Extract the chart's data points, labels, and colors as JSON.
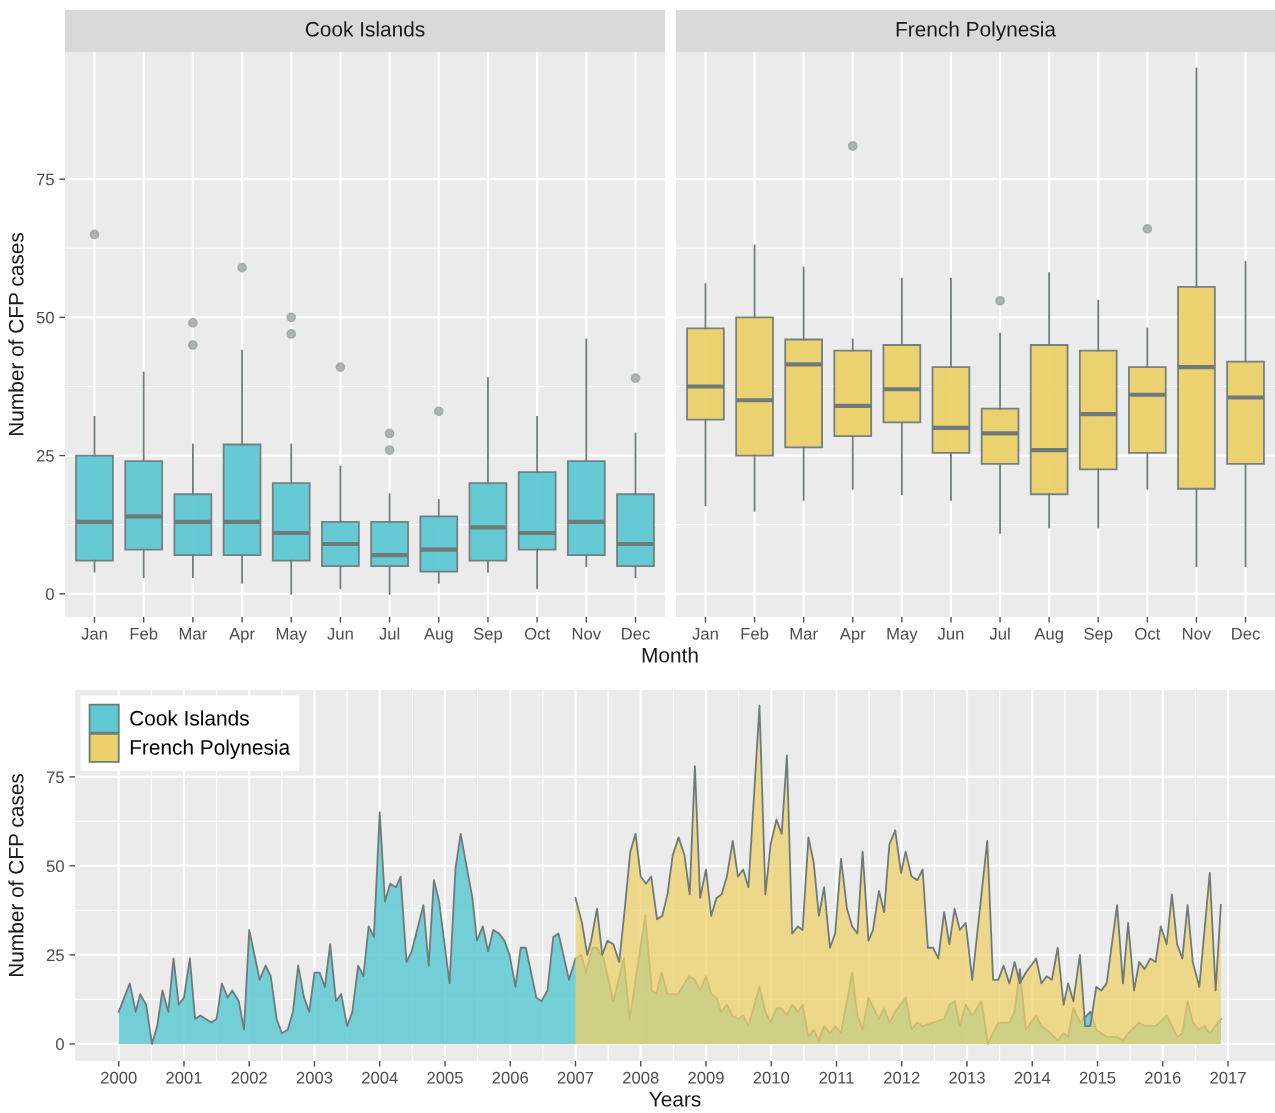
{
  "chart_data": [
    {
      "type": "box",
      "title": "Cook Islands",
      "xlabel": "Month",
      "ylabel": "Number of CFP cases",
      "categories": [
        "Jan",
        "Feb",
        "Mar",
        "Apr",
        "May",
        "Jun",
        "Jul",
        "Aug",
        "Sep",
        "Oct",
        "Nov",
        "Dec"
      ],
      "ylim": [
        -4.2,
        98
      ],
      "yticks": [
        0,
        25,
        50,
        75
      ],
      "grid": true,
      "series": [
        {
          "color": "#5ec9d2",
          "boxes": [
            {
              "low": 4,
              "q1": 6,
              "median": 13,
              "q3": 25,
              "high": 32,
              "outliers": [
                65
              ]
            },
            {
              "low": 3,
              "q1": 8,
              "median": 14,
              "q3": 24,
              "high": 40
            },
            {
              "low": 3,
              "q1": 7,
              "median": 13,
              "q3": 18,
              "high": 27,
              "outliers": [
                45,
                49
              ]
            },
            {
              "low": 2,
              "q1": 7,
              "median": 13,
              "q3": 27,
              "high": 44,
              "outliers": [
                59
              ]
            },
            {
              "low": 0,
              "q1": 6,
              "median": 11,
              "q3": 20,
              "high": 27,
              "outliers": [
                47,
                50
              ]
            },
            {
              "low": 1,
              "q1": 5,
              "median": 9,
              "q3": 13,
              "high": 23,
              "outliers": [
                41
              ]
            },
            {
              "low": 0,
              "q1": 5,
              "median": 7,
              "q3": 13,
              "high": 18,
              "outliers": [
                26,
                29
              ]
            },
            {
              "low": 2,
              "q1": 4,
              "median": 8,
              "q3": 14,
              "high": 17,
              "outliers": [
                33
              ]
            },
            {
              "low": 4,
              "q1": 6,
              "median": 12,
              "q3": 20,
              "high": 39
            },
            {
              "low": 1,
              "q1": 8,
              "median": 11,
              "q3": 22,
              "high": 32
            },
            {
              "low": 5,
              "q1": 7,
              "median": 13,
              "q3": 24,
              "high": 46
            },
            {
              "low": 3,
              "q1": 5,
              "median": 9,
              "q3": 18,
              "high": 29,
              "outliers": [
                39
              ]
            }
          ]
        }
      ]
    },
    {
      "type": "box",
      "title": "French Polynesia",
      "categories": [
        "Jan",
        "Feb",
        "Mar",
        "Apr",
        "May",
        "Jun",
        "Jul",
        "Aug",
        "Sep",
        "Oct",
        "Nov",
        "Dec"
      ],
      "ylim": [
        -4.2,
        98
      ],
      "yticks": [
        0,
        25,
        50,
        75
      ],
      "grid": true,
      "tick_labels": "x",
      "series": [
        {
          "color": "#ecd06a",
          "boxes": [
            {
              "low": 16,
              "q1": 31.5,
              "median": 37.5,
              "q3": 48,
              "high": 56
            },
            {
              "low": 15,
              "q1": 25,
              "median": 35,
              "q3": 50,
              "high": 63
            },
            {
              "low": 17,
              "q1": 26.5,
              "median": 41.5,
              "q3": 46,
              "high": 59
            },
            {
              "low": 19,
              "q1": 28.5,
              "median": 34,
              "q3": 44,
              "high": 46,
              "outliers": [
                81
              ]
            },
            {
              "low": 18,
              "q1": 31,
              "median": 37,
              "q3": 45,
              "high": 57
            },
            {
              "low": 17,
              "q1": 25.5,
              "median": 30,
              "q3": 41,
              "high": 57
            },
            {
              "low": 11,
              "q1": 23.5,
              "median": 29,
              "q3": 33.5,
              "high": 47,
              "outliers": [
                53
              ]
            },
            {
              "low": 12,
              "q1": 18,
              "median": 26,
              "q3": 45,
              "high": 58
            },
            {
              "low": 12,
              "q1": 22.5,
              "median": 32.5,
              "q3": 44,
              "high": 53
            },
            {
              "low": 19,
              "q1": 25.5,
              "median": 36,
              "q3": 41,
              "high": 48,
              "outliers": [
                66
              ]
            },
            {
              "low": 5,
              "q1": 19,
              "median": 41,
              "q3": 55.5,
              "high": 95
            },
            {
              "low": 5,
              "q1": 23.5,
              "median": 35.5,
              "q3": 42,
              "high": 60
            }
          ]
        }
      ]
    },
    {
      "type": "area",
      "xlabel": "Years",
      "ylabel": "Number of CFP cases",
      "xlim": [
        1999.33,
        2017.72
      ],
      "ylim": [
        -4.8,
        99.4
      ],
      "xticks": [
        2000,
        2001,
        2002,
        2003,
        2004,
        2005,
        2006,
        2007,
        2008,
        2009,
        2010,
        2011,
        2012,
        2013,
        2014,
        2015,
        2016,
        2017
      ],
      "yticks": [
        0,
        25,
        50,
        75
      ],
      "grid": true,
      "legend": "top left",
      "series": [
        {
          "name": "Cook Islands",
          "color": "#5ec9d2",
          "x": [
            2000.0,
            2000.17,
            2000.26,
            2000.33,
            2000.42,
            2000.51,
            2000.59,
            2000.67,
            2000.76,
            2000.84,
            2000.92,
            2001.0,
            2001.09,
            2001.17,
            2001.25,
            2001.42,
            2001.5,
            2001.58,
            2001.67,
            2001.74,
            2001.84,
            2001.92,
            2002.0,
            2002.16,
            2002.25,
            2002.33,
            2002.42,
            2002.5,
            2002.59,
            2002.67,
            2002.75,
            2002.84,
            2002.92,
            2003.0,
            2003.08,
            2003.16,
            2003.24,
            2003.33,
            2003.41,
            2003.5,
            2003.58,
            2003.67,
            2003.75,
            2003.83,
            2003.91,
            2004.0,
            2004.08,
            2004.16,
            2004.25,
            2004.32,
            2004.41,
            2004.49,
            2004.67,
            2004.75,
            2004.83,
            2004.91,
            2005.07,
            2005.16,
            2005.24,
            2005.42,
            2005.49,
            2005.58,
            2005.66,
            2005.74,
            2005.83,
            2005.91,
            2005.99,
            2006.08,
            2006.16,
            2006.24,
            2006.4,
            2006.48,
            2006.57,
            2006.66,
            2006.74,
            2006.9,
            2007.0,
            2007.09,
            2007.16,
            2007.26,
            2007.33,
            2007.43,
            2007.58,
            2007.74,
            2007.83,
            2008.07,
            2008.17,
            2008.24,
            2008.32,
            2008.41,
            2008.49,
            2008.57,
            2008.74,
            2008.83,
            2008.91,
            2009.0,
            2009.08,
            2009.16,
            2009.23,
            2009.32,
            2009.4,
            2009.49,
            2009.57,
            2009.65,
            2009.82,
            2009.91,
            2009.99,
            2010.08,
            2010.16,
            2010.24,
            2010.32,
            2010.41,
            2010.48,
            2010.57,
            2010.65,
            2010.73,
            2010.81,
            2010.9,
            2010.98,
            2011.07,
            2011.24,
            2011.32,
            2011.4,
            2011.49,
            2011.65,
            2011.73,
            2011.81,
            2011.9,
            2012.06,
            2012.15,
            2012.24,
            2012.32,
            2012.48,
            2012.65,
            2012.73,
            2012.81,
            2012.89,
            2012.98,
            2013.08,
            2013.22,
            2013.32,
            2013.4,
            2013.48,
            2013.65,
            2013.73,
            2013.81,
            2013.9,
            2014.06,
            2014.14,
            2014.22,
            2014.39,
            2014.48,
            2014.55,
            2014.63,
            2014.73,
            2014.89,
            2014.98,
            2015.14,
            2015.22,
            2015.3,
            2015.39,
            2015.47,
            2015.64,
            2015.72,
            2015.89,
            2016.06,
            2016.14,
            2016.22,
            2016.3,
            2016.38,
            2016.46,
            2016.56,
            2016.64,
            2016.72,
            2016.89
          ],
          "values": [
            9,
            17,
            9,
            14,
            11,
            0,
            5,
            15,
            9,
            24,
            11,
            13,
            24,
            7,
            8,
            6,
            7,
            17,
            13,
            15,
            12,
            4,
            32,
            18,
            22,
            19,
            7,
            3,
            4,
            9,
            22,
            13,
            9,
            20,
            20,
            16,
            28,
            12,
            14,
            5,
            9,
            22,
            19,
            33,
            30,
            65,
            40,
            45,
            44,
            47,
            23,
            26,
            39,
            22,
            46,
            40,
            17,
            49,
            59,
            41,
            29,
            33,
            26,
            32,
            31,
            29,
            25,
            16,
            27,
            27,
            13,
            12,
            15,
            30,
            31,
            18,
            24,
            25,
            20,
            27,
            27,
            24,
            12,
            24,
            7,
            36,
            15,
            14,
            20,
            14,
            14,
            14,
            19,
            18,
            15,
            19,
            14,
            13,
            9,
            11,
            8,
            7,
            8,
            5,
            16,
            9,
            6,
            10,
            10,
            8,
            11,
            9,
            11,
            2,
            4,
            1,
            5,
            3,
            5,
            3,
            20,
            8,
            4,
            13,
            7,
            10,
            6,
            9,
            13,
            4,
            6,
            5,
            6,
            7,
            11,
            12,
            5,
            11,
            8,
            12,
            0,
            3,
            6,
            6,
            9,
            21,
            4,
            8,
            5,
            4,
            1,
            3,
            2,
            10,
            6,
            9,
            4,
            2,
            2,
            2,
            1,
            3,
            6,
            5,
            5,
            8,
            5,
            2,
            3,
            12,
            6,
            4,
            5,
            3,
            7
          ]
        },
        {
          "name": "French Polynesia",
          "color": "#ecd06a",
          "x": [
            2007.0,
            2007.1,
            2007.18,
            2007.24,
            2007.33,
            2007.41,
            2007.49,
            2007.58,
            2007.67,
            2007.75,
            2007.84,
            2007.92,
            2008.0,
            2008.08,
            2008.16,
            2008.25,
            2008.33,
            2008.41,
            2008.49,
            2008.58,
            2008.67,
            2008.75,
            2008.83,
            2008.91,
            2009.0,
            2009.08,
            2009.16,
            2009.24,
            2009.32,
            2009.41,
            2009.49,
            2009.57,
            2009.65,
            2009.82,
            2009.91,
            2009.99,
            2010.08,
            2010.16,
            2010.24,
            2010.32,
            2010.41,
            2010.48,
            2010.57,
            2010.65,
            2010.73,
            2010.81,
            2010.9,
            2010.98,
            2011.07,
            2011.16,
            2011.24,
            2011.32,
            2011.4,
            2011.49,
            2011.56,
            2011.65,
            2011.73,
            2011.81,
            2011.9,
            2011.99,
            2012.06,
            2012.15,
            2012.24,
            2012.32,
            2012.4,
            2012.48,
            2012.56,
            2012.65,
            2012.73,
            2012.81,
            2012.89,
            2012.98,
            2013.08,
            2013.31,
            2013.4,
            2013.48,
            2013.56,
            2013.65,
            2013.73,
            2013.81,
            2013.9,
            2014.06,
            2014.14,
            2014.22,
            2014.3,
            2014.39,
            2014.48,
            2014.55,
            2014.63,
            2014.73,
            2014.81,
            2014.89,
            2014.98,
            2015.06,
            2015.14,
            2015.3,
            2015.39,
            2015.47,
            2015.56,
            2015.64,
            2015.72,
            2015.81,
            2015.89,
            2015.97,
            2016.06,
            2016.14,
            2016.22,
            2016.3,
            2016.38,
            2016.46,
            2016.56,
            2016.72,
            2016.81,
            2016.89
          ],
          "values": [
            41,
            34,
            25,
            29,
            38,
            25,
            29,
            28,
            23,
            37,
            54,
            59,
            47,
            45,
            47,
            35,
            36,
            42,
            53,
            58,
            53,
            42,
            78,
            41,
            49,
            36,
            41,
            42,
            47,
            57,
            47,
            49,
            44,
            95,
            42,
            56,
            63,
            59,
            81,
            31,
            33,
            32,
            58,
            51,
            36,
            44,
            27,
            31,
            52,
            38,
            33,
            31,
            54,
            29,
            32,
            43,
            37,
            56,
            60,
            48,
            54,
            47,
            46,
            49,
            27,
            27,
            24,
            37,
            28,
            38,
            32,
            34,
            18,
            57,
            18,
            18,
            22,
            17,
            23,
            17,
            20,
            24,
            17,
            19,
            18,
            27,
            11,
            17,
            12,
            25,
            5,
            5,
            16,
            15,
            17,
            39,
            17,
            34,
            15,
            23,
            21,
            24,
            23,
            33,
            28,
            42,
            28,
            24,
            39,
            23,
            16,
            48,
            15,
            39
          ]
        }
      ]
    }
  ]
}
